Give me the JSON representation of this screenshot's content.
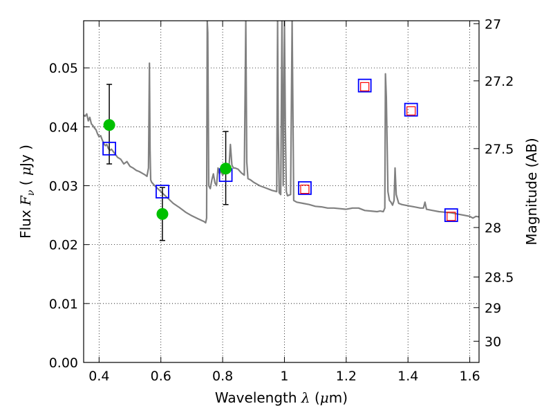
{
  "chart_data": {
    "type": "scatter",
    "xlabel": "Wavelength  λ (μm)",
    "ylabel": "Flux  F_ν  ( μJy )",
    "ylabel_right": "Magnitude (AB)",
    "xlim": [
      0.35,
      1.63
    ],
    "ylim": [
      0.0,
      0.058
    ],
    "grid": true,
    "x_ticks": [
      0.4,
      0.6,
      0.8,
      1.0,
      1.2,
      1.4,
      1.6
    ],
    "x_tick_labels": [
      "0.4",
      "0.6",
      "0.8",
      "1",
      "1.2",
      "1.4",
      "1.6"
    ],
    "y_ticks": [
      0.0,
      0.01,
      0.02,
      0.03,
      0.04,
      0.05
    ],
    "y_tick_labels": [
      "0.00",
      "0.01",
      "0.02",
      "0.03",
      "0.04",
      "0.05"
    ],
    "right_axis": {
      "ticks": [
        {
          "label": "27",
          "flux": 0.0575
        },
        {
          "label": "27.2",
          "flux": 0.0478
        },
        {
          "label": "27.5",
          "flux": 0.0363
        },
        {
          "label": "28",
          "flux": 0.0229
        },
        {
          "label": "28.5",
          "flux": 0.0145
        },
        {
          "label": "29",
          "flux": 0.0093
        },
        {
          "label": "30",
          "flux": 0.0036
        }
      ]
    },
    "series": [
      {
        "kind": "line",
        "color": "#808080",
        "x": [
          0.35,
          0.355,
          0.36,
          0.365,
          0.37,
          0.375,
          0.38,
          0.385,
          0.39,
          0.395,
          0.4,
          0.405,
          0.41,
          0.415,
          0.42,
          0.425,
          0.43,
          0.435,
          0.44,
          0.45,
          0.46,
          0.47,
          0.48,
          0.49,
          0.5,
          0.51,
          0.52,
          0.53,
          0.54,
          0.55,
          0.555,
          0.56,
          0.563,
          0.565,
          0.567,
          0.57,
          0.575,
          0.58,
          0.59,
          0.6,
          0.62,
          0.64,
          0.66,
          0.68,
          0.7,
          0.72,
          0.74,
          0.745,
          0.748,
          0.75,
          0.752,
          0.755,
          0.76,
          0.765,
          0.77,
          0.775,
          0.78,
          0.785,
          0.79,
          0.795,
          0.8,
          0.805,
          0.81,
          0.815,
          0.82,
          0.825,
          0.83,
          0.835,
          0.84,
          0.85,
          0.86,
          0.87,
          0.875,
          0.878,
          0.882,
          0.89,
          0.9,
          0.92,
          0.94,
          0.96,
          0.975,
          0.978,
          0.98,
          0.983,
          0.988,
          0.992,
          0.996,
          1.0,
          1.003,
          1.006,
          1.01,
          1.02,
          1.025,
          1.03,
          1.04,
          1.06,
          1.08,
          1.1,
          1.12,
          1.14,
          1.16,
          1.18,
          1.2,
          1.22,
          1.24,
          1.26,
          1.28,
          1.3,
          1.31,
          1.32,
          1.325,
          1.327,
          1.33,
          1.335,
          1.34,
          1.345,
          1.35,
          1.355,
          1.358,
          1.362,
          1.37,
          1.38,
          1.4,
          1.42,
          1.44,
          1.45,
          1.455,
          1.46,
          1.48,
          1.5,
          1.52,
          1.54,
          1.56,
          1.58,
          1.6,
          1.61,
          1.62,
          1.63
        ],
        "y": [
          0.042,
          0.0418,
          0.0422,
          0.041,
          0.0416,
          0.0405,
          0.0402,
          0.0398,
          0.0395,
          0.0388,
          0.0383,
          0.0385,
          0.0378,
          0.0372,
          0.0368,
          0.037,
          0.0363,
          0.036,
          0.0362,
          0.0355,
          0.0348,
          0.0345,
          0.0337,
          0.0341,
          0.0333,
          0.033,
          0.0326,
          0.0324,
          0.0321,
          0.0318,
          0.0316,
          0.033,
          0.0508,
          0.036,
          0.031,
          0.0306,
          0.0303,
          0.03,
          0.0295,
          0.029,
          0.028,
          0.027,
          0.0263,
          0.0255,
          0.0249,
          0.0244,
          0.0239,
          0.0237,
          0.0245,
          0.058,
          0.056,
          0.03,
          0.0295,
          0.031,
          0.032,
          0.0305,
          0.03,
          0.033,
          0.032,
          0.0325,
          0.0318,
          0.0322,
          0.033,
          0.0328,
          0.0325,
          0.037,
          0.0335,
          0.033,
          0.033,
          0.0328,
          0.0322,
          0.0318,
          0.058,
          0.034,
          0.0312,
          0.031,
          0.0306,
          0.03,
          0.0296,
          0.0292,
          0.029,
          0.058,
          0.04,
          0.0288,
          0.0285,
          0.058,
          0.03,
          0.058,
          0.04,
          0.029,
          0.0283,
          0.0285,
          0.058,
          0.0275,
          0.0272,
          0.027,
          0.0268,
          0.0265,
          0.0264,
          0.0262,
          0.0262,
          0.0261,
          0.026,
          0.0262,
          0.0262,
          0.0258,
          0.0257,
          0.0256,
          0.0257,
          0.0256,
          0.0262,
          0.049,
          0.045,
          0.029,
          0.0275,
          0.0272,
          0.0267,
          0.0275,
          0.033,
          0.0285,
          0.027,
          0.0268,
          0.0266,
          0.0264,
          0.0262,
          0.0262,
          0.0272,
          0.026,
          0.0258,
          0.0256,
          0.0255,
          0.0254,
          0.0252,
          0.025,
          0.0248,
          0.0245,
          0.0248,
          0.0247
        ]
      },
      {
        "kind": "model-bands",
        "marker": "square",
        "color": "#0000ff",
        "x": [
          0.433,
          0.605,
          0.81,
          1.066,
          1.26,
          1.41,
          1.54
        ],
        "y": [
          0.0363,
          0.029,
          0.0318,
          0.0296,
          0.047,
          0.0429,
          0.025
        ]
      },
      {
        "kind": "model-bands-inner",
        "marker": "square",
        "color": "#ff0000",
        "x": [
          1.066,
          1.26,
          1.41,
          1.54
        ],
        "y": [
          0.0294,
          0.0468,
          0.0427,
          0.0248
        ]
      },
      {
        "kind": "observed",
        "marker": "circle",
        "color": "#00c000",
        "x": [
          0.433,
          0.605,
          0.81
        ],
        "y": [
          0.0403,
          0.0252,
          0.0329
        ],
        "yerr_low": [
          0.0337,
          0.0207,
          0.0268
        ],
        "yerr_high": [
          0.0472,
          0.0297,
          0.0392
        ]
      }
    ]
  }
}
